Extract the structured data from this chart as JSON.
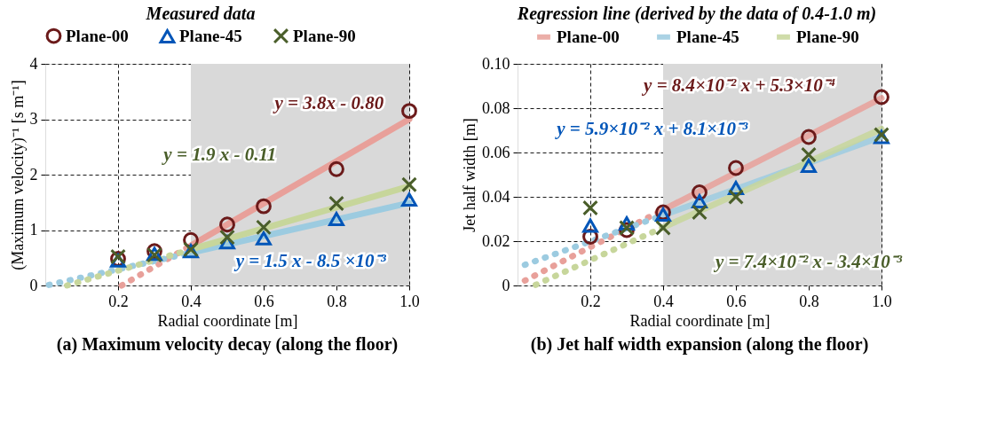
{
  "chart_data": [
    {
      "type": "scatter",
      "title": "(a) Maximum velocity decay (along the floor)",
      "xlabel": "Radial coordinate [m]",
      "ylabel": "(Maximum velocity)⁻¹ [s m⁻¹]",
      "legend_title": "Measured data",
      "legend": "top",
      "grid": true,
      "xlim": [
        0,
        1.0
      ],
      "xticks": [
        0.2,
        0.4,
        0.6,
        0.8,
        {
          "value": 1.0,
          "label": "1.0"
        }
      ],
      "ylim": [
        0,
        4
      ],
      "yticks": [
        0,
        1,
        2,
        3,
        4
      ],
      "bands": [
        {
          "axis": "x",
          "from": 0.4,
          "to": 1.0,
          "color": "#d9d9d9"
        }
      ],
      "series": [
        {
          "name": "Plane-00",
          "marker": "circle",
          "color": "#6b1a1a",
          "x": [
            0.2,
            0.3,
            0.4,
            0.5,
            0.6,
            0.8,
            1.0
          ],
          "values": [
            0.48,
            0.62,
            0.82,
            1.1,
            1.43,
            2.1,
            3.15
          ]
        },
        {
          "name": "Plane-45",
          "marker": "triangle",
          "color": "#0055b8",
          "x": [
            0.2,
            0.3,
            0.4,
            0.5,
            0.6,
            0.8,
            1.0
          ],
          "values": [
            0.45,
            0.57,
            0.62,
            0.78,
            0.85,
            1.2,
            1.55
          ]
        },
        {
          "name": "Plane-90",
          "marker": "cross",
          "color": "#4a5e2a",
          "x": [
            0.2,
            0.3,
            0.4,
            0.5,
            0.6,
            0.8,
            1.0
          ],
          "values": [
            0.52,
            0.55,
            0.65,
            0.87,
            1.05,
            1.48,
            1.82
          ]
        },
        {
          "type": "line",
          "line_style": "solid",
          "color": "#e8a09a",
          "x": [
            0.4,
            1.0
          ],
          "values": [
            0.72,
            3.0
          ]
        },
        {
          "type": "line",
          "line_style": "solid",
          "color": "#9ccbe0",
          "x": [
            0.4,
            1.0
          ],
          "values": [
            0.59,
            1.49
          ]
        },
        {
          "type": "line",
          "line_style": "solid",
          "color": "#c7d69b",
          "x": [
            0.4,
            1.0
          ],
          "values": [
            0.65,
            1.79
          ]
        },
        {
          "type": "line",
          "line_style": "dotted",
          "color": "#e8a09a",
          "x": [
            0.21,
            0.4
          ],
          "values": [
            0.0,
            0.72
          ]
        },
        {
          "type": "line",
          "line_style": "dotted",
          "color": "#9ccbe0",
          "x": [
            0.01,
            0.4
          ],
          "values": [
            0.01,
            0.59
          ]
        },
        {
          "type": "line",
          "line_style": "dotted",
          "color": "#c7d69b",
          "x": [
            0.06,
            0.4
          ],
          "values": [
            0.0,
            0.65
          ]
        }
      ],
      "annotations": [
        "y = 3.8x - 0.80",
        "y = 1.5 x - 8.5 ×10⁻³",
        "y = 1.9 x - 0.11"
      ]
    },
    {
      "type": "scatter",
      "title": "(b) Jet half width expansion (along the floor)",
      "xlabel": "Radial coordinate [m]",
      "ylabel": "Jet half width [m]",
      "legend_title": "Regression line (derived by the data of 0.4-1.0 m)",
      "legend": "top",
      "grid": true,
      "xlim": [
        0,
        1.0
      ],
      "xticks": [
        0.2,
        0.4,
        0.6,
        0.8,
        {
          "value": 1.0,
          "label": "1.0"
        }
      ],
      "ylim": [
        0,
        0.1
      ],
      "yticks": [
        0,
        0.02,
        0.04,
        0.06,
        0.08,
        {
          "value": 0.1,
          "label": "0.10"
        }
      ],
      "bands": [
        {
          "axis": "x",
          "from": 0.4,
          "to": 1.0,
          "color": "#d9d9d9"
        }
      ],
      "series": [
        {
          "name": "Plane-00",
          "type": "line",
          "line_style": "solid",
          "color": "#e8a09a",
          "x": [
            0.4,
            1.0
          ],
          "values": [
            0.0341,
            0.0845
          ]
        },
        {
          "name": "Plane-45",
          "type": "line",
          "line_style": "solid",
          "color": "#9ccbe0",
          "x": [
            0.4,
            1.0
          ],
          "values": [
            0.0317,
            0.0671
          ]
        },
        {
          "name": "Plane-90",
          "type": "line",
          "line_style": "solid",
          "color": "#c7d69b",
          "x": [
            0.4,
            1.0
          ],
          "values": [
            0.0262,
            0.0706
          ]
        },
        {
          "type": "line",
          "line_style": "dotted",
          "color": "#e8a09a",
          "x": [
            0.02,
            0.4
          ],
          "values": [
            0.0022,
            0.0341
          ]
        },
        {
          "type": "line",
          "line_style": "dotted",
          "color": "#9ccbe0",
          "x": [
            0.02,
            0.4
          ],
          "values": [
            0.0093,
            0.0317
          ]
        },
        {
          "type": "line",
          "line_style": "dotted",
          "color": "#c7d69b",
          "x": [
            0.05,
            0.4
          ],
          "values": [
            0.0003,
            0.0262
          ]
        },
        {
          "marker": "circle",
          "color": "#6b1a1a",
          "x": [
            0.2,
            0.3,
            0.4,
            0.5,
            0.6,
            0.8,
            1.0
          ],
          "values": [
            0.022,
            0.025,
            0.033,
            0.042,
            0.053,
            0.067,
            0.085
          ]
        },
        {
          "marker": "triangle",
          "color": "#0055b8",
          "x": [
            0.2,
            0.3,
            0.4,
            0.5,
            0.6,
            0.8,
            1.0
          ],
          "values": [
            0.027,
            0.028,
            0.032,
            0.038,
            0.044,
            0.054,
            0.067
          ]
        },
        {
          "marker": "cross",
          "color": "#4a5e2a",
          "x": [
            0.2,
            0.3,
            0.4,
            0.5,
            0.6,
            0.8,
            1.0
          ],
          "values": [
            0.035,
            0.026,
            0.026,
            0.033,
            0.04,
            0.059,
            0.068
          ]
        }
      ],
      "annotations": [
        "y = 8.4×10⁻² x + 5.3×10⁻⁴",
        "y = 5.9×10⁻² x + 8.1×10⁻³",
        "y = 7.4×10⁻² x - 3.4×10⁻³"
      ]
    }
  ]
}
